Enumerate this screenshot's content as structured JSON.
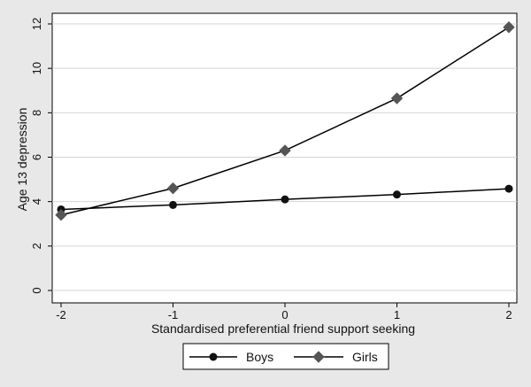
{
  "chart_data": {
    "type": "line",
    "title": "",
    "xlabel": "Standardised preferential friend support seeking",
    "ylabel": "Age 13 depression",
    "x": [
      -2,
      -1,
      0,
      1,
      2
    ],
    "x_ticks": [
      "-2",
      "-1",
      "0",
      "1",
      "2"
    ],
    "xlim": [
      -2,
      2
    ],
    "y_ticks": [
      "0",
      "2",
      "4",
      "6",
      "8",
      "10",
      "12"
    ],
    "ylim": [
      0,
      12
    ],
    "grid": "horizontal",
    "legend_position": "bottom",
    "series": [
      {
        "name": "Boys",
        "marker": "circle",
        "color": "#111111",
        "values": [
          3.65,
          3.85,
          4.1,
          4.32,
          4.58
        ]
      },
      {
        "name": "Girls",
        "marker": "diamond",
        "color": "#555555",
        "values": [
          3.4,
          4.6,
          6.3,
          8.65,
          11.85
        ]
      }
    ]
  }
}
